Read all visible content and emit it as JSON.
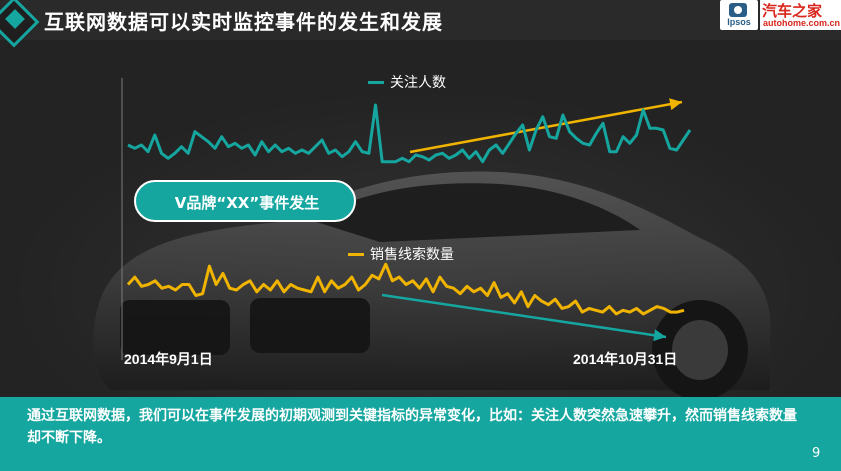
{
  "header": {
    "title": "互联网数据可以实时监控事件的发生和发展",
    "logos": {
      "ipsos": "Ipsos",
      "autohome_cn": "汽车之家",
      "autohome_en": "autohome.com.cn"
    }
  },
  "annotation": {
    "event_label": "V品牌“XX”事件发生"
  },
  "dates": {
    "start": "2014年9月1日",
    "end": "2014年10月31日"
  },
  "footer": {
    "text": "通过互联网数据，我们可以在事件发展的初期观测到关键指标的异常变化，比如：关注人数突然急速攀升，然而销售线索数量却不断下降。",
    "page": "9"
  },
  "colors": {
    "teal": "#16a6a0",
    "gold": "#f0b400",
    "dark": "#262626"
  },
  "chart_data": {
    "type": "line",
    "x_range": [
      "2014-09-01",
      "2014-10-31"
    ],
    "grid": false,
    "legend_placement": "inline-labels",
    "series": [
      {
        "name": "关注人数",
        "color": "#16a6a0",
        "trend": "up",
        "values": [
          50,
          48,
          50,
          46,
          56,
          45,
          42,
          45,
          49,
          45,
          58,
          55,
          52,
          48,
          55,
          49,
          51,
          48,
          50,
          44,
          52,
          46,
          50,
          46,
          48,
          45,
          47,
          45,
          49,
          53,
          45,
          47,
          43,
          46,
          52,
          46,
          45,
          74,
          40,
          40,
          40,
          42,
          40,
          44,
          43,
          41,
          44,
          45,
          42,
          44,
          47,
          42,
          46,
          40,
          47,
          50,
          45,
          51,
          57,
          62,
          47,
          59,
          67,
          55,
          54,
          68,
          58,
          54,
          51,
          50,
          57,
          63,
          46,
          46,
          55,
          51,
          56,
          71,
          60,
          60,
          59,
          48,
          47,
          53,
          59
        ]
      },
      {
        "name": "销售线索数量",
        "color": "#f0b400",
        "trend": "down",
        "values": [
          62,
          66,
          61,
          62,
          64,
          60,
          61,
          59,
          62,
          62,
          56,
          57,
          72,
          62,
          68,
          60,
          59,
          62,
          64,
          58,
          62,
          59,
          64,
          58,
          62,
          60,
          59,
          58,
          66,
          58,
          64,
          60,
          62,
          66,
          59,
          62,
          67,
          65,
          73,
          64,
          66,
          62,
          64,
          60,
          65,
          58,
          66,
          61,
          60,
          57,
          61,
          58,
          60,
          56,
          63,
          55,
          57,
          52,
          58,
          50,
          56,
          53,
          51,
          54,
          49,
          50,
          53,
          47,
          49,
          48,
          47,
          50,
          46,
          48,
          47,
          49,
          46,
          48,
          50,
          49,
          47,
          47,
          48
        ]
      }
    ]
  }
}
